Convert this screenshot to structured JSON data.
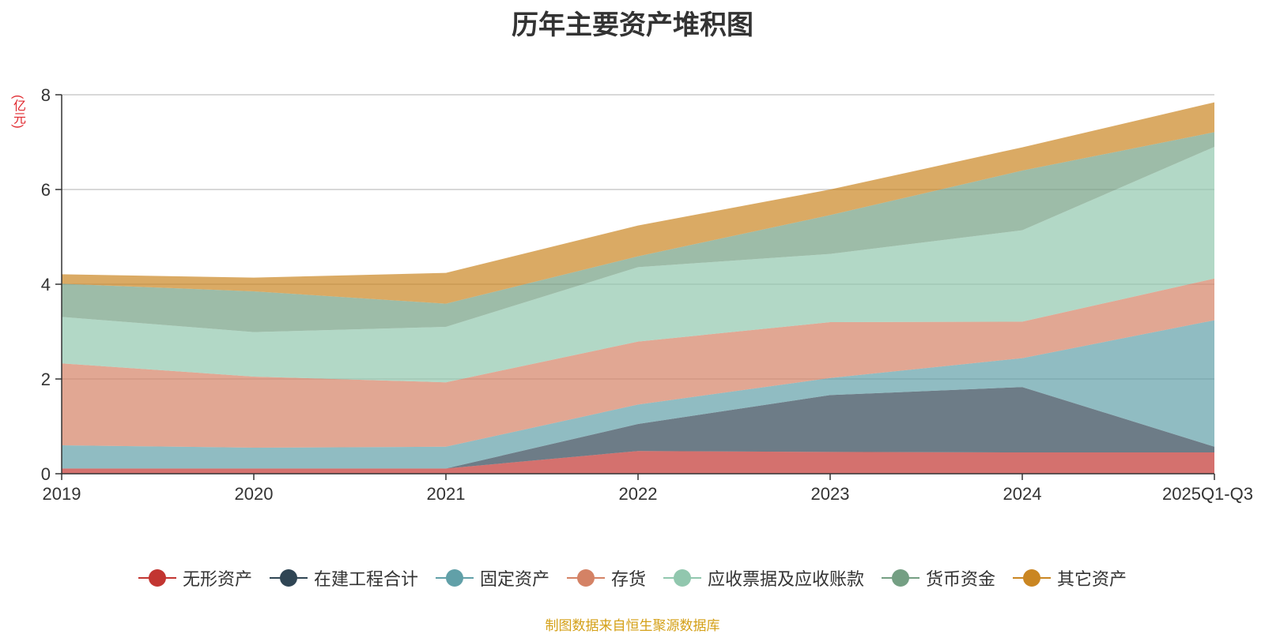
{
  "chart_data": {
    "type": "area",
    "stacked": true,
    "title": "历年主要资产堆积图",
    "ylabel": "(亿元)",
    "xlabel": "",
    "ylim": [
      0,
      8
    ],
    "yticks": [
      0,
      2,
      4,
      6,
      8
    ],
    "categories": [
      "2019",
      "2020",
      "2021",
      "2022",
      "2023",
      "2024",
      "2025Q1-Q3"
    ],
    "series": [
      {
        "name": "无形资产",
        "color": "#c23531",
        "values": [
          0.11,
          0.11,
          0.11,
          0.48,
          0.46,
          0.45,
          0.45
        ]
      },
      {
        "name": "在建工程合计",
        "color": "#2f4554",
        "values": [
          0.0,
          0.0,
          0.0,
          0.57,
          1.2,
          1.38,
          0.12
        ]
      },
      {
        "name": "固定资产",
        "color": "#61a0a8",
        "values": [
          0.49,
          0.44,
          0.46,
          0.41,
          0.36,
          0.61,
          2.67
        ]
      },
      {
        "name": "存货",
        "color": "#d48265",
        "values": [
          1.73,
          1.5,
          1.36,
          1.33,
          1.18,
          0.77,
          0.88
        ]
      },
      {
        "name": "应收票据及应收账款",
        "color": "#91c7ae",
        "values": [
          0.98,
          0.94,
          1.17,
          1.57,
          1.44,
          1.93,
          2.78
        ]
      },
      {
        "name": "货币资金",
        "color": "#749f83",
        "values": [
          0.7,
          0.86,
          0.49,
          0.23,
          0.82,
          1.26,
          0.31
        ]
      },
      {
        "name": "其它资产",
        "color": "#ca8622",
        "values": [
          0.2,
          0.29,
          0.65,
          0.65,
          0.54,
          0.49,
          0.63
        ]
      }
    ],
    "legend_position": "bottom",
    "grid": true
  },
  "source_note": "制图数据来自恒生聚源数据库"
}
